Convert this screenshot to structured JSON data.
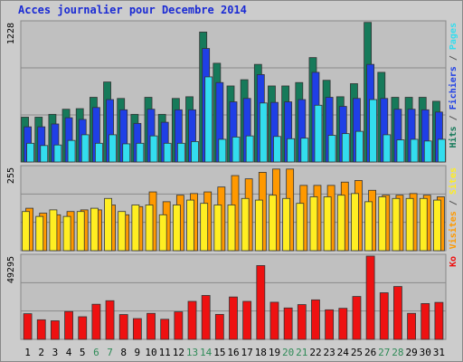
{
  "window": {
    "title": "Acces journalier pour Decembre 2014"
  },
  "colors": {
    "background": "#cccccc",
    "panel": "#c0c0c0",
    "pages": "#33ddee",
    "fichiers": "#1f3fe6",
    "hits": "#167a5a",
    "visites": "#ff9900",
    "sites": "#ffee22",
    "ko": "#ee1111",
    "weekend": "#2e8b57",
    "title": "#1b2bd4"
  },
  "chart_data": {
    "type": "bar",
    "title": "Acces journalier pour Decembre 2014",
    "categories": [
      "1",
      "2",
      "3",
      "4",
      "5",
      "6",
      "7",
      "8",
      "9",
      "10",
      "11",
      "12",
      "13",
      "14",
      "15",
      "16",
      "17",
      "18",
      "19",
      "20",
      "21",
      "22",
      "23",
      "24",
      "25",
      "26",
      "27",
      "28",
      "29",
      "30",
      "31"
    ],
    "weekend_days": [
      "6",
      "7",
      "13",
      "14",
      "20",
      "21",
      "27",
      "28"
    ],
    "panels": [
      {
        "id": "hits",
        "ymax_label": "1228",
        "ymax": 1228,
        "legend": [
          {
            "text": "Hits",
            "color": "#167a5a"
          },
          {
            "text": " / ",
            "color": "#555555"
          },
          {
            "text": "Fichiers",
            "color": "#1f3fe6"
          },
          {
            "text": " / ",
            "color": "#555555"
          },
          {
            "text": "Pages",
            "color": "#33ddee"
          }
        ],
        "series": [
          {
            "name": "Hits",
            "color": "#167a5a",
            "values": [
              395,
              395,
              420,
              465,
              470,
              570,
              705,
              560,
              420,
              570,
              420,
              560,
              575,
              1145,
              870,
              670,
              725,
              860,
              670,
              670,
              700,
              920,
              720,
              575,
              690,
              1230,
              790,
              570,
              570,
              570,
              535
            ]
          },
          {
            "name": "Fichiers",
            "color": "#1f3fe6",
            "values": [
              310,
              310,
              335,
              390,
              375,
              480,
              550,
              460,
              340,
              465,
              350,
              460,
              460,
              1000,
              700,
              530,
              560,
              770,
              525,
              530,
              550,
              790,
              570,
              490,
              560,
              860,
              560,
              465,
              465,
              460,
              440
            ]
          },
          {
            "name": "Pages",
            "color": "#33ddee",
            "values": [
              165,
              145,
              150,
              190,
              240,
              165,
              240,
              160,
              165,
              230,
              165,
              165,
              180,
              750,
              200,
              220,
              230,
              520,
              225,
              205,
              210,
              500,
              235,
              250,
              270,
              550,
              240,
              195,
              200,
              185,
              200
            ]
          }
        ]
      },
      {
        "id": "visites",
        "ymax_label": "255",
        "ymax": 255,
        "legend": [
          {
            "text": "Visites",
            "color": "#ff9900"
          },
          {
            "text": " / ",
            "color": "#555555"
          },
          {
            "text": "Sites",
            "color": "#ffee22"
          }
        ],
        "series": [
          {
            "name": "Visites",
            "color": "#ff9900",
            "values": [
              130,
              115,
              110,
              120,
              125,
              125,
              140,
              110,
              135,
              180,
              150,
              170,
              175,
              180,
              195,
              230,
              220,
              240,
              250,
              250,
              200,
              200,
              200,
              210,
              215,
              185,
              170,
              170,
              175,
              170,
              165
            ]
          },
          {
            "name": "Sites",
            "color": "#ffee22",
            "values": [
              120,
              105,
              125,
              105,
              120,
              130,
              160,
              120,
              140,
              140,
              110,
              140,
              155,
              145,
              140,
              140,
              160,
              155,
              170,
              160,
              145,
              165,
              165,
              170,
              175,
              150,
              165,
              160,
              160,
              160,
              155
            ]
          }
        ]
      },
      {
        "id": "ko",
        "ymax_label": "49295",
        "ymax": 49295,
        "legend": [
          {
            "text": "Ko",
            "color": "#ee1111"
          }
        ],
        "series": [
          {
            "name": "Ko",
            "color": "#ee1111",
            "values": [
              15200,
              11600,
              11000,
              16500,
              13400,
              20800,
              22900,
              14700,
              12300,
              15400,
              11900,
              16300,
              22500,
              26000,
              14800,
              25100,
              22500,
              43700,
              22000,
              18600,
              20600,
              23400,
              17500,
              18400,
              25400,
              49300,
              27600,
              31300,
              15400,
              21200,
              21900
            ]
          }
        ]
      }
    ]
  }
}
